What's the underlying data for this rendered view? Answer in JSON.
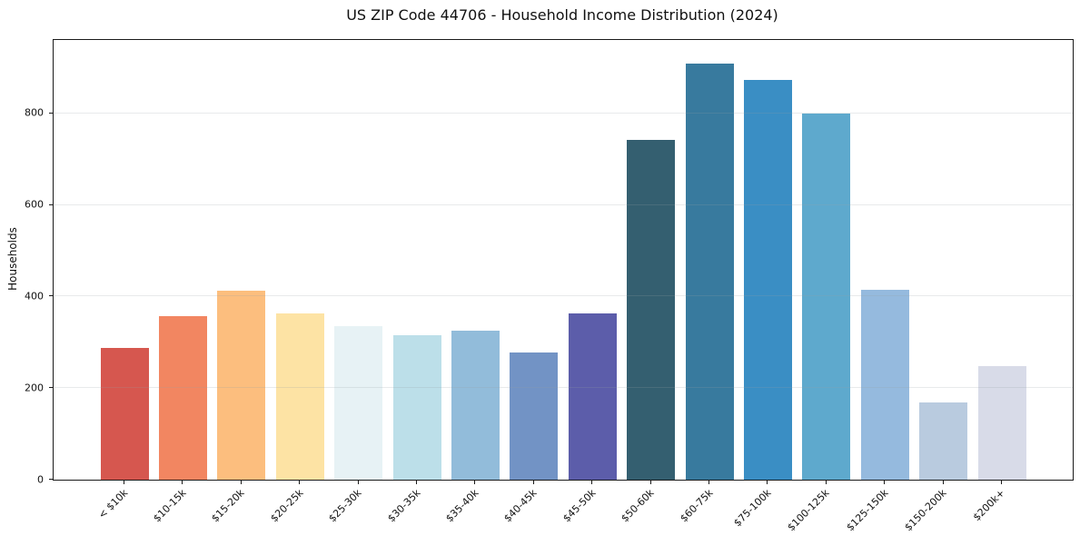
{
  "figure": {
    "title": "US ZIP Code 44706 - Household Income Distribution (2024)",
    "ylabel": "Households"
  },
  "chart_data": {
    "type": "bar",
    "title": "US ZIP Code 44706 - Household Income Distribution (2024)",
    "xlabel": "",
    "ylabel": "Households",
    "categories": [
      "< $10k",
      "$10-15k",
      "$15-20k",
      "$20-25k",
      "$25-30k",
      "$30-35k",
      "$35-40k",
      "$40-45k",
      "$45-50k",
      "$50-60k",
      "$60-75k",
      "$75-100k",
      "$100-125k",
      "$125-150k",
      "$150-200k",
      "$200k+"
    ],
    "values": [
      288,
      358,
      412,
      364,
      335,
      316,
      326,
      277,
      363,
      741,
      909,
      873,
      800,
      414,
      168,
      248
    ],
    "bar_colors": [
      "#d6574f",
      "#f28661",
      "#fcbe7e",
      "#fde3a4",
      "#e7f2f5",
      "#bcdfe9",
      "#92bcda",
      "#7293c5",
      "#5c5daa",
      "#345f70",
      "#387a9e",
      "#3a8ec4",
      "#5ea9cd",
      "#95bade",
      "#b9cbdf",
      "#d8dbe8"
    ],
    "yticks": [
      0,
      200,
      400,
      600,
      800
    ],
    "ylim": [
      0,
      960
    ],
    "grid": true,
    "legend": false,
    "background": "#ffffff",
    "axis_color": "#1a1a1a"
  }
}
